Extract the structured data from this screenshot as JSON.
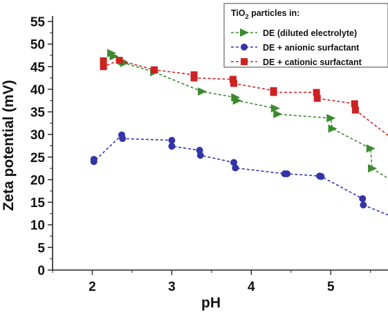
{
  "chart_data": {
    "type": "line",
    "xlabel": "pH",
    "ylabel": "Zeta potential (mV)",
    "xlim": [
      1.5,
      5.72
    ],
    "ylim": [
      0,
      55
    ],
    "xticks": [
      2,
      3,
      4,
      5
    ],
    "yticks": [
      0,
      5,
      10,
      15,
      20,
      25,
      30,
      35,
      40,
      45,
      50,
      55
    ],
    "grid": false,
    "legend_title": "TiO2 particles in:",
    "legend_position": "top-right",
    "series": [
      {
        "name": "DE (diluted electrolyte)",
        "color": "#3c8a2e",
        "marker": "triangle-right",
        "points": [
          [
            2.24,
            48.0
          ],
          [
            2.27,
            47.3
          ],
          [
            2.38,
            46.2
          ],
          [
            2.4,
            45.8
          ],
          [
            2.78,
            43.8
          ],
          [
            3.38,
            39.5
          ],
          [
            3.8,
            38.2
          ],
          [
            3.82,
            37.5
          ],
          [
            4.3,
            35.8
          ],
          [
            4.33,
            34.5
          ],
          [
            5.0,
            33.6
          ],
          [
            5.02,
            31.3
          ],
          [
            5.5,
            26.9
          ],
          [
            5.52,
            22.5
          ]
        ],
        "trail": [
          5.72,
          20.3
        ]
      },
      {
        "name": "DE + anionic surfactant",
        "color": "#3333aa",
        "marker": "circle",
        "points": [
          [
            2.02,
            24.5
          ],
          [
            2.02,
            24.0
          ],
          [
            2.37,
            29.9
          ],
          [
            2.38,
            29.1
          ],
          [
            3.0,
            28.7
          ],
          [
            3.0,
            27.4
          ],
          [
            3.35,
            26.5
          ],
          [
            3.36,
            25.4
          ],
          [
            3.78,
            23.8
          ],
          [
            3.8,
            22.6
          ],
          [
            4.42,
            21.3
          ],
          [
            4.45,
            21.3
          ],
          [
            4.86,
            20.8
          ],
          [
            4.88,
            20.7
          ],
          [
            5.4,
            15.8
          ],
          [
            5.41,
            14.4
          ]
        ],
        "trail": [
          5.72,
          12.2
        ]
      },
      {
        "name": "DE + cationic surfactant",
        "color": "#cc2222",
        "marker": "square",
        "points": [
          [
            2.14,
            46.3
          ],
          [
            2.14,
            45.0
          ],
          [
            2.34,
            46.4
          ],
          [
            2.78,
            44.3
          ],
          [
            3.28,
            43.2
          ],
          [
            3.28,
            42.5
          ],
          [
            3.77,
            42.2
          ],
          [
            3.78,
            41.3
          ],
          [
            4.28,
            39.7
          ],
          [
            4.28,
            39.3
          ],
          [
            4.82,
            39.3
          ],
          [
            4.83,
            38.0
          ],
          [
            5.3,
            36.8
          ],
          [
            5.31,
            35.4
          ]
        ],
        "trail": [
          5.72,
          29.8
        ]
      }
    ]
  }
}
